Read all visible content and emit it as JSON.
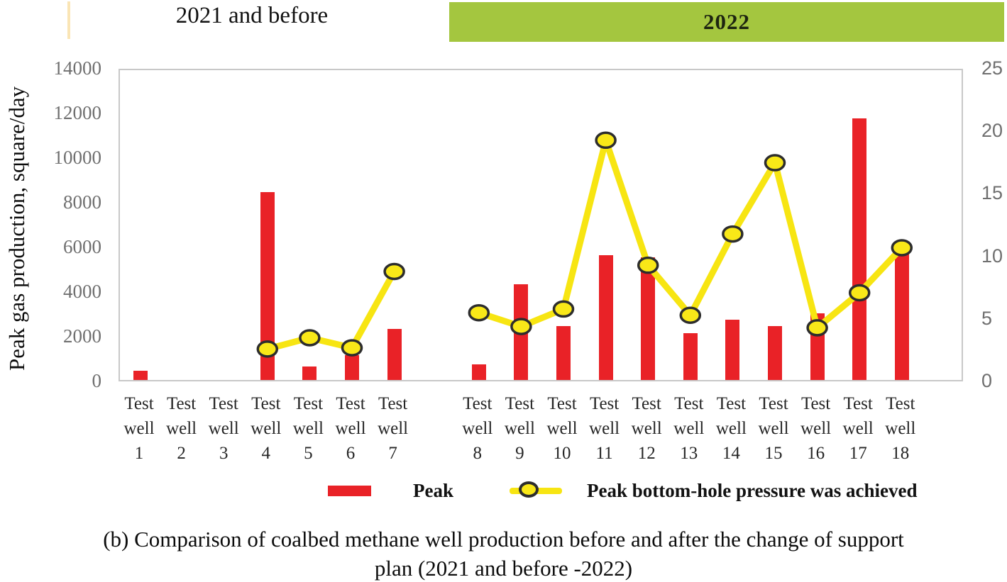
{
  "header": {
    "left_label": "2021 and before",
    "right_label": "2022"
  },
  "legend": {
    "bar_label": "Peak",
    "line_label": "Peak bottom-hole pressure was achieved"
  },
  "caption": {
    "line1": "(b) Comparison of coalbed methane well production before and after the change of support",
    "line2": "plan (2021 and before -2022)"
  },
  "colors": {
    "bar_red": "#E92227",
    "line_yellow": "#F7E512",
    "marker_fill": "#F9E818",
    "marker_stroke": "#2d2d2d",
    "band_green": "#A4C63F",
    "band_edge_cream": "#FAE5B5",
    "tick_gray": "#6f6f6f",
    "plot_border": "#c8c8c8"
  },
  "chart_data": {
    "type": "combo",
    "title": "",
    "x_label_lines": [
      "Test",
      "well"
    ],
    "left_axis": {
      "label": "Peak gas production, square/day",
      "min": 0,
      "max": 14000,
      "ticks": [
        0,
        2000,
        4000,
        6000,
        8000,
        10000,
        12000,
        14000
      ]
    },
    "right_axis": {
      "label": "",
      "min": 0,
      "max": 25,
      "ticks": [
        0,
        5,
        10,
        15,
        20,
        25
      ]
    },
    "series": [
      {
        "name": "Peak",
        "type": "bar",
        "axis": "left",
        "color": "#E92227"
      },
      {
        "name": "Peak bottom-hole pressure was achieved",
        "type": "line",
        "axis": "right",
        "color": "#F7E512",
        "marker_fill": "#F9E818",
        "marker_stroke": "#2d2d2d"
      }
    ],
    "grid": false,
    "legend_position": "bottom",
    "wells": [
      {
        "name": "Test well 1",
        "num": "1",
        "group": "2021",
        "peak": 400,
        "pressure": null
      },
      {
        "name": "Test well 2",
        "num": "2",
        "group": "2021",
        "peak": 0,
        "pressure": null
      },
      {
        "name": "Test well 3",
        "num": "3",
        "group": "2021",
        "peak": 0,
        "pressure": null
      },
      {
        "name": "Test well 4",
        "num": "4",
        "group": "2021",
        "peak": 8400,
        "pressure": 2.7
      },
      {
        "name": "Test well 5",
        "num": "5",
        "group": "2021",
        "peak": 600,
        "pressure": 3.6
      },
      {
        "name": "Test well 6",
        "num": "6",
        "group": "2021",
        "peak": 1100,
        "pressure": 2.8
      },
      {
        "name": "Test well 7",
        "num": "7",
        "group": "2021",
        "peak": 2300,
        "pressure": 8.9
      },
      {
        "name": "Test well 8",
        "num": "8",
        "group": "2022",
        "peak": 700,
        "pressure": 5.6
      },
      {
        "name": "Test well 9",
        "num": "9",
        "group": "2022",
        "peak": 4300,
        "pressure": 4.5
      },
      {
        "name": "Test well 10",
        "num": "10",
        "group": "2022",
        "peak": 2400,
        "pressure": 5.9
      },
      {
        "name": "Test well 11",
        "num": "11",
        "group": "2022",
        "peak": 5600,
        "pressure": 19.4
      },
      {
        "name": "Test well 12",
        "num": "12",
        "group": "2022",
        "peak": 5500,
        "pressure": 9.4
      },
      {
        "name": "Test well 13",
        "num": "13",
        "group": "2022",
        "peak": 2100,
        "pressure": 5.4
      },
      {
        "name": "Test well 14",
        "num": "14",
        "group": "2022",
        "peak": 2700,
        "pressure": 11.9
      },
      {
        "name": "Test well 15",
        "num": "15",
        "group": "2022",
        "peak": 2400,
        "pressure": 17.6
      },
      {
        "name": "Test well 16",
        "num": "16",
        "group": "2022",
        "peak": 3000,
        "pressure": 4.4
      },
      {
        "name": "Test well 17",
        "num": "17",
        "group": "2022",
        "peak": 11700,
        "pressure": 7.2
      },
      {
        "name": "Test well 18",
        "num": "18",
        "group": "2022",
        "peak": 5900,
        "pressure": 10.8
      }
    ]
  }
}
